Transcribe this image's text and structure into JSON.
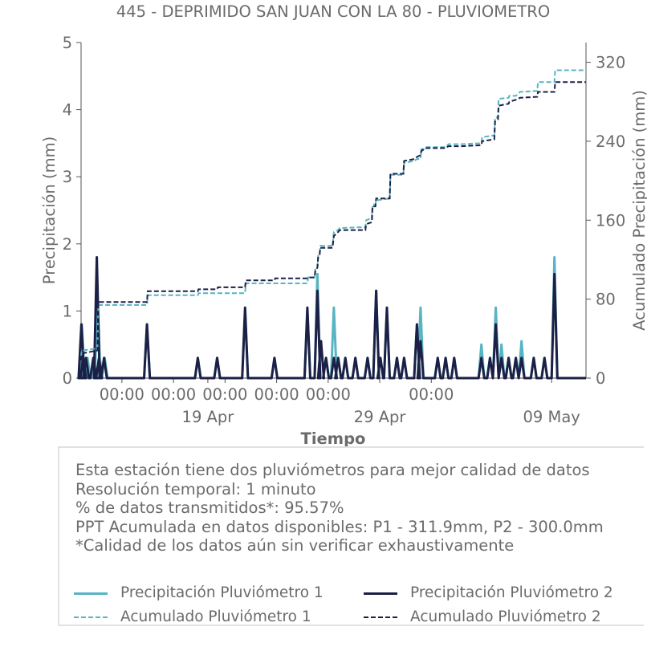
{
  "chart_data": {
    "type": "line",
    "title": "445 - DEPRIMIDO SAN JUAN CON LA 80 - PLUVIOMETRO",
    "xlabel": "Tiempo",
    "ylabel": "Precipitación (mm)",
    "y2label": "Acumulado Precipitación (mm)",
    "ylim": [
      0,
      5
    ],
    "y2lim": [
      0,
      340
    ],
    "xlim": [
      "2024-04-11T15:00",
      "2024-05-11T00:00"
    ],
    "x_ticks": [
      {
        "date": "2024-04-14T00:00",
        "time": "00:00",
        "date_label": ""
      },
      {
        "date": "2024-04-17T00:00",
        "time": "00:00",
        "date_label": ""
      },
      {
        "date": "2024-04-19T00:00",
        "time": "",
        "date_label": "19 Apr"
      },
      {
        "date": "2024-04-20T00:00",
        "time": "00:00",
        "date_label": ""
      },
      {
        "date": "2024-04-23T00:00",
        "time": "00:00",
        "date_label": ""
      },
      {
        "date": "2024-04-26T00:00",
        "time": "00:00",
        "date_label": ""
      },
      {
        "date": "2024-04-29T00:00",
        "time": "",
        "date_label": "29 Apr"
      },
      {
        "date": "2024-05-02T00:00",
        "time": "00:00",
        "date_label": ""
      },
      {
        "date": "2024-05-09T00:00",
        "time": "",
        "date_label": "09 May"
      }
    ],
    "y_ticks": [
      0,
      1,
      2,
      3,
      4,
      5
    ],
    "y2_ticks": [
      0,
      80,
      160,
      240,
      320
    ],
    "grid": false,
    "legend_position": "bottom",
    "series": [
      {
        "name": "Precipitación Pluviómetro 1",
        "axis": "left",
        "style": "solid",
        "color": "#57b4c2",
        "points": [
          [
            "2024-04-11T16:00",
            0.8
          ],
          [
            "2024-04-11T20:00",
            0.3
          ],
          [
            "2024-04-12T00:00",
            0.3
          ],
          [
            "2024-04-12T09:00",
            0.3
          ],
          [
            "2024-04-12T14:00",
            1.2
          ],
          [
            "2024-04-12T17:00",
            0.3
          ],
          [
            "2024-04-13T00:00",
            0.3
          ],
          [
            "2024-04-15T11:00",
            0.8
          ],
          [
            "2024-04-18T10:00",
            0.3
          ],
          [
            "2024-04-19T13:00",
            0.3
          ],
          [
            "2024-04-21T04:00",
            1.0
          ],
          [
            "2024-04-22T21:00",
            0.3
          ],
          [
            "2024-04-24T19:00",
            1.0
          ],
          [
            "2024-04-25T09:00",
            1.55
          ],
          [
            "2024-04-25T14:00",
            0.5
          ],
          [
            "2024-04-25T21:00",
            0.3
          ],
          [
            "2024-04-26T08:00",
            1.05
          ],
          [
            "2024-04-26T14:00",
            0.3
          ],
          [
            "2024-04-27T00:00",
            0.3
          ],
          [
            "2024-04-27T14:00",
            0.3
          ],
          [
            "2024-04-28T07:00",
            0.3
          ],
          [
            "2024-04-28T19:00",
            1.3
          ],
          [
            "2024-04-29T01:00",
            0.3
          ],
          [
            "2024-04-29T10:00",
            1.0
          ],
          [
            "2024-04-30T00:00",
            0.3
          ],
          [
            "2024-04-30T10:00",
            0.3
          ],
          [
            "2024-05-01T04:00",
            0.8
          ],
          [
            "2024-05-01T09:00",
            1.05
          ],
          [
            "2024-05-02T09:00",
            0.3
          ],
          [
            "2024-05-02T20:00",
            0.3
          ],
          [
            "2024-05-03T08:00",
            0.3
          ],
          [
            "2024-05-04T22:00",
            0.5
          ],
          [
            "2024-05-05T10:00",
            0.3
          ],
          [
            "2024-05-05T18:00",
            1.05
          ],
          [
            "2024-05-06T02:00",
            0.5
          ],
          [
            "2024-05-06T12:00",
            0.3
          ],
          [
            "2024-05-06T22:00",
            0.3
          ],
          [
            "2024-05-07T06:00",
            0.55
          ],
          [
            "2024-05-07T23:00",
            0.3
          ],
          [
            "2024-05-08T14:00",
            0.3
          ],
          [
            "2024-05-09T04:00",
            1.8
          ]
        ]
      },
      {
        "name": "Precipitación Pluviómetro 2",
        "axis": "left",
        "style": "solid",
        "color": "#1c2046",
        "points": [
          [
            "2024-04-11T15:30",
            0.8
          ],
          [
            "2024-04-11T18:00",
            0.3
          ],
          [
            "2024-04-11T22:00",
            0.3
          ],
          [
            "2024-04-12T08:00",
            0.3
          ],
          [
            "2024-04-12T13:00",
            1.8
          ],
          [
            "2024-04-12T16:00",
            0.3
          ],
          [
            "2024-04-12T23:00",
            0.3
          ],
          [
            "2024-04-15T11:00",
            0.8
          ],
          [
            "2024-04-18T10:00",
            0.3
          ],
          [
            "2024-04-19T13:00",
            0.3
          ],
          [
            "2024-04-21T04:00",
            1.05
          ],
          [
            "2024-04-22T21:00",
            0.3
          ],
          [
            "2024-04-24T19:00",
            1.05
          ],
          [
            "2024-04-25T09:00",
            1.3
          ],
          [
            "2024-04-25T14:00",
            0.55
          ],
          [
            "2024-04-25T21:00",
            0.3
          ],
          [
            "2024-04-26T08:00",
            0.3
          ],
          [
            "2024-04-26T14:00",
            0.3
          ],
          [
            "2024-04-27T00:00",
            0.3
          ],
          [
            "2024-04-27T14:00",
            0.3
          ],
          [
            "2024-04-28T07:00",
            0.3
          ],
          [
            "2024-04-28T19:00",
            1.3
          ],
          [
            "2024-04-29T01:00",
            0.3
          ],
          [
            "2024-04-29T10:00",
            1.05
          ],
          [
            "2024-04-30T00:00",
            0.3
          ],
          [
            "2024-04-30T10:00",
            0.3
          ],
          [
            "2024-05-01T04:00",
            0.8
          ],
          [
            "2024-05-01T09:00",
            0.55
          ],
          [
            "2024-05-02T09:00",
            0.3
          ],
          [
            "2024-05-02T20:00",
            0.3
          ],
          [
            "2024-05-03T08:00",
            0.3
          ],
          [
            "2024-05-04T22:00",
            0.3
          ],
          [
            "2024-05-05T10:00",
            0.3
          ],
          [
            "2024-05-05T18:00",
            0.8
          ],
          [
            "2024-05-06T02:00",
            0.3
          ],
          [
            "2024-05-06T12:00",
            0.3
          ],
          [
            "2024-05-06T22:00",
            0.3
          ],
          [
            "2024-05-07T06:00",
            0.3
          ],
          [
            "2024-05-07T23:00",
            0.3
          ],
          [
            "2024-05-08T14:00",
            0.3
          ],
          [
            "2024-05-09T04:00",
            1.55
          ]
        ]
      },
      {
        "name": "Acumulado Pluviómetro 1",
        "axis": "right",
        "style": "dashed",
        "color": "#57b4c2",
        "points": [
          [
            "2024-04-11T15:00",
            22
          ],
          [
            "2024-04-11T16:00",
            28
          ],
          [
            "2024-04-12T14:00",
            30
          ],
          [
            "2024-04-12T15:00",
            74
          ],
          [
            "2024-04-15T11:00",
            74
          ],
          [
            "2024-04-15T12:00",
            84
          ],
          [
            "2024-04-18T10:00",
            84
          ],
          [
            "2024-04-18T11:00",
            86
          ],
          [
            "2024-04-21T04:00",
            86
          ],
          [
            "2024-04-21T05:00",
            96
          ],
          [
            "2024-04-24T19:00",
            96
          ],
          [
            "2024-04-24T20:00",
            102
          ],
          [
            "2024-04-25T05:00",
            102
          ],
          [
            "2024-04-25T06:00",
            110
          ],
          [
            "2024-04-25T09:00",
            112
          ],
          [
            "2024-04-25T10:00",
            124
          ],
          [
            "2024-04-25T12:00",
            126
          ],
          [
            "2024-04-25T13:00",
            134
          ],
          [
            "2024-04-26T06:00",
            134
          ],
          [
            "2024-04-26T08:00",
            148
          ],
          [
            "2024-04-26T14:00",
            150
          ],
          [
            "2024-04-26T16:00",
            152
          ],
          [
            "2024-04-28T04:00",
            153
          ],
          [
            "2024-04-28T05:00",
            160
          ],
          [
            "2024-04-28T13:00",
            162
          ],
          [
            "2024-04-28T14:00",
            176
          ],
          [
            "2024-04-28T18:00",
            176
          ],
          [
            "2024-04-28T19:00",
            180
          ],
          [
            "2024-04-29T14:00",
            182
          ],
          [
            "2024-04-29T15:00",
            206
          ],
          [
            "2024-04-30T09:00",
            206
          ],
          [
            "2024-04-30T10:00",
            218
          ],
          [
            "2024-05-01T00:00",
            220
          ],
          [
            "2024-05-01T04:00",
            222
          ],
          [
            "2024-05-01T09:00",
            222
          ],
          [
            "2024-05-01T10:00",
            232
          ],
          [
            "2024-05-01T14:00",
            232
          ],
          [
            "2024-05-01T16:00",
            234
          ],
          [
            "2024-05-02T20:00",
            234
          ],
          [
            "2024-05-03T00:00",
            237
          ],
          [
            "2024-05-03T18:00",
            237
          ],
          [
            "2024-05-04T22:00",
            238
          ],
          [
            "2024-05-04T23:00",
            244
          ],
          [
            "2024-05-05T16:00",
            246
          ],
          [
            "2024-05-05T17:00",
            264
          ],
          [
            "2024-05-05T21:00",
            264
          ],
          [
            "2024-05-05T22:00",
            283
          ],
          [
            "2024-05-06T12:00",
            284
          ],
          [
            "2024-05-06T13:00",
            286
          ],
          [
            "2024-05-06T22:00",
            286
          ],
          [
            "2024-05-07T04:00",
            290
          ],
          [
            "2024-05-08T04:00",
            291
          ],
          [
            "2024-05-08T05:00",
            300
          ],
          [
            "2024-05-09T04:00",
            300
          ],
          [
            "2024-05-09T05:00",
            311.9
          ],
          [
            "2024-05-11T00:00",
            311.9
          ]
        ]
      },
      {
        "name": "Acumulado Pluviómetro 2",
        "axis": "right",
        "style": "dashed",
        "color": "#1c2046",
        "points": [
          [
            "2024-04-11T15:00",
            18
          ],
          [
            "2024-04-11T16:00",
            25
          ],
          [
            "2024-04-12T14:00",
            28
          ],
          [
            "2024-04-12T15:00",
            77
          ],
          [
            "2024-04-15T11:00",
            77
          ],
          [
            "2024-04-15T12:00",
            88
          ],
          [
            "2024-04-18T10:00",
            88
          ],
          [
            "2024-04-18T11:00",
            90
          ],
          [
            "2024-04-19T13:00",
            90
          ],
          [
            "2024-04-19T14:00",
            92
          ],
          [
            "2024-04-21T04:00",
            92
          ],
          [
            "2024-04-21T05:00",
            99
          ],
          [
            "2024-04-22T21:00",
            99
          ],
          [
            "2024-04-22T22:00",
            101
          ],
          [
            "2024-04-24T19:00",
            101
          ],
          [
            "2024-04-24T20:00",
            102
          ],
          [
            "2024-04-25T05:00",
            102
          ],
          [
            "2024-04-25T06:00",
            108
          ],
          [
            "2024-04-25T09:00",
            112
          ],
          [
            "2024-04-25T10:00",
            122
          ],
          [
            "2024-04-25T12:00",
            124
          ],
          [
            "2024-04-25T13:00",
            132
          ],
          [
            "2024-04-26T06:00",
            132
          ],
          [
            "2024-04-26T08:00",
            144
          ],
          [
            "2024-04-26T14:00",
            148
          ],
          [
            "2024-04-26T16:00",
            150
          ],
          [
            "2024-04-28T04:00",
            150
          ],
          [
            "2024-04-28T05:00",
            156
          ],
          [
            "2024-04-28T13:00",
            158
          ],
          [
            "2024-04-28T14:00",
            174
          ],
          [
            "2024-04-28T18:00",
            174
          ],
          [
            "2024-04-28T19:00",
            182
          ],
          [
            "2024-04-29T14:00",
            182
          ],
          [
            "2024-04-29T15:00",
            207
          ],
          [
            "2024-04-30T09:00",
            207
          ],
          [
            "2024-04-30T10:00",
            220
          ],
          [
            "2024-05-01T00:00",
            222
          ],
          [
            "2024-05-01T04:00",
            224
          ],
          [
            "2024-05-01T09:00",
            226
          ],
          [
            "2024-05-01T10:00",
            230
          ],
          [
            "2024-05-01T14:00",
            232
          ],
          [
            "2024-05-01T16:00",
            233
          ],
          [
            "2024-05-02T20:00",
            233
          ],
          [
            "2024-05-03T00:00",
            235
          ],
          [
            "2024-05-03T18:00",
            235
          ],
          [
            "2024-05-04T22:00",
            236
          ],
          [
            "2024-05-04T23:00",
            240
          ],
          [
            "2024-05-05T16:00",
            242
          ],
          [
            "2024-05-05T17:00",
            260
          ],
          [
            "2024-05-05T21:00",
            262
          ],
          [
            "2024-05-05T22:00",
            276
          ],
          [
            "2024-05-06T12:00",
            278
          ],
          [
            "2024-05-06T13:00",
            280
          ],
          [
            "2024-05-06T22:00",
            282
          ],
          [
            "2024-05-07T04:00",
            284
          ],
          [
            "2024-05-08T04:00",
            285
          ],
          [
            "2024-05-08T05:00",
            290
          ],
          [
            "2024-05-09T04:00",
            290
          ],
          [
            "2024-05-09T05:00",
            300.0
          ],
          [
            "2024-05-11T00:00",
            300.0
          ]
        ]
      }
    ]
  },
  "info_box": {
    "lines": [
      "Esta estación tiene dos pluviómetros para mejor calidad de datos",
      "Resolución temporal: 1 minuto",
      "% de datos transmitidos*: 95.57%",
      "PPT Acumulada en datos disponibles: P1 - 311.9mm, P2 - 300.0mm",
      "*Calidad de los datos aún sin verificar exhaustivamente"
    ]
  },
  "legend": {
    "items": [
      {
        "label": "Precipitación Pluviómetro 1",
        "color": "#57b4c2",
        "style": "solid"
      },
      {
        "label": "Precipitación Pluviómetro 2",
        "color": "#1c2046",
        "style": "solid"
      },
      {
        "label": "Acumulado Pluviómetro 1",
        "color": "#57b4c2",
        "style": "dashed"
      },
      {
        "label": "Acumulado Pluviómetro 2",
        "color": "#1c2046",
        "style": "dashed"
      }
    ]
  }
}
